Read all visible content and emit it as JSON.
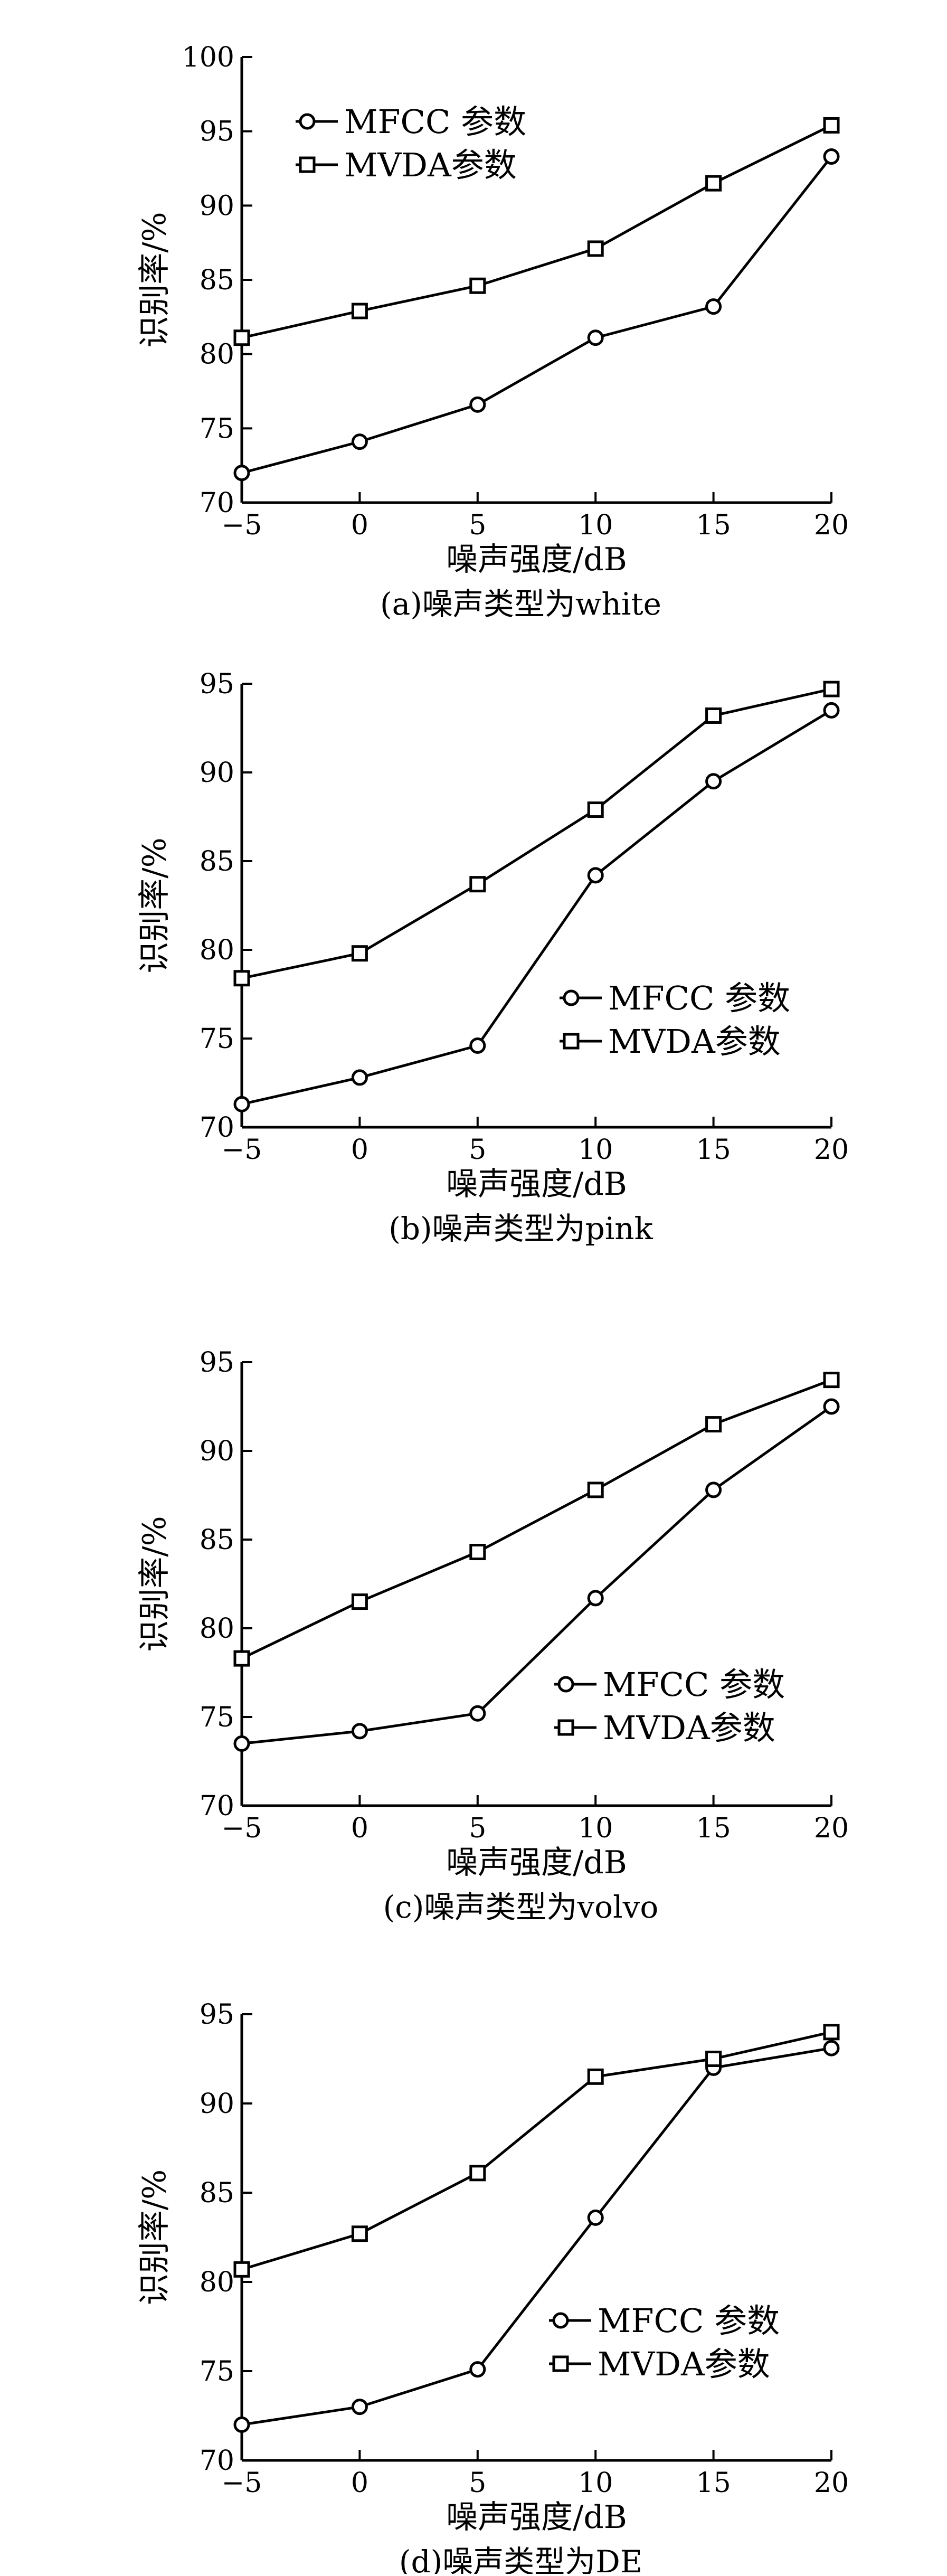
{
  "chart_data": [
    {
      "type": "line",
      "caption": "(a)噪声类型为white",
      "xlabel": "噪声强度/dB",
      "ylabel": "识别率/%",
      "x": [
        -5,
        0,
        5,
        10,
        15,
        20
      ],
      "xticks": [
        "−5",
        "0",
        "5",
        "10",
        "15",
        "20"
      ],
      "xlim": [
        -5,
        20
      ],
      "ylim": [
        70,
        100
      ],
      "yticks": [
        "70",
        "75",
        "80",
        "85",
        "90",
        "95",
        "100"
      ],
      "grid": false,
      "legend_position": "top-left",
      "series": [
        {
          "name": "MFCC 参数",
          "marker": "circle",
          "values": [
            72.0,
            74.1,
            76.6,
            81.1,
            83.2,
            93.3
          ]
        },
        {
          "name": "MVDA参数",
          "marker": "square",
          "values": [
            81.1,
            82.9,
            84.6,
            87.1,
            91.5,
            95.4
          ]
        }
      ]
    },
    {
      "type": "line",
      "caption": "(b)噪声类型为pink",
      "xlabel": "噪声强度/dB",
      "ylabel": "识别率/%",
      "x": [
        -5,
        0,
        5,
        10,
        15,
        20
      ],
      "xticks": [
        "−5",
        "0",
        "5",
        "10",
        "15",
        "20"
      ],
      "xlim": [
        -5,
        20
      ],
      "ylim": [
        70,
        95
      ],
      "yticks": [
        "70",
        "75",
        "80",
        "85",
        "90",
        "95"
      ],
      "grid": false,
      "legend_position": "bottom-right",
      "series": [
        {
          "name": "MFCC 参数",
          "marker": "circle",
          "values": [
            71.3,
            72.8,
            74.6,
            84.2,
            89.5,
            93.5
          ]
        },
        {
          "name": "MVDA参数",
          "marker": "square",
          "values": [
            78.4,
            79.8,
            83.7,
            87.9,
            93.2,
            94.7
          ]
        }
      ]
    },
    {
      "type": "line",
      "caption": "(c)噪声类型为volvo",
      "xlabel": "噪声强度/dB",
      "ylabel": "识别率/%",
      "x": [
        -5,
        0,
        5,
        10,
        15,
        20
      ],
      "xticks": [
        "−5",
        "0",
        "5",
        "10",
        "15",
        "20"
      ],
      "xlim": [
        -5,
        20
      ],
      "ylim": [
        70,
        95
      ],
      "yticks": [
        "70",
        "75",
        "80",
        "85",
        "90",
        "95"
      ],
      "grid": false,
      "legend_position": "bottom-right",
      "series": [
        {
          "name": "MFCC 参数",
          "marker": "circle",
          "values": [
            73.5,
            74.2,
            75.2,
            81.7,
            87.8,
            92.5
          ]
        },
        {
          "name": "MVDA参数",
          "marker": "square",
          "values": [
            78.3,
            81.5,
            84.3,
            87.8,
            91.5,
            94.0
          ]
        }
      ]
    },
    {
      "type": "line",
      "caption": "(d)噪声类型为DE",
      "xlabel": "噪声强度/dB",
      "ylabel": "识别率/%",
      "x": [
        -5,
        0,
        5,
        10,
        15,
        20
      ],
      "xticks": [
        "−5",
        "0",
        "5",
        "10",
        "15",
        "20"
      ],
      "xlim": [
        -5,
        20
      ],
      "ylim": [
        70,
        95
      ],
      "yticks": [
        "70",
        "75",
        "80",
        "85",
        "90",
        "95"
      ],
      "grid": false,
      "legend_position": "bottom-right",
      "series": [
        {
          "name": "MFCC 参数",
          "marker": "circle",
          "values": [
            72.0,
            73.0,
            75.1,
            83.6,
            92.0,
            93.1
          ]
        },
        {
          "name": "MVDA参数",
          "marker": "square",
          "values": [
            80.7,
            82.7,
            86.1,
            91.5,
            92.5,
            94.0
          ]
        }
      ]
    }
  ]
}
